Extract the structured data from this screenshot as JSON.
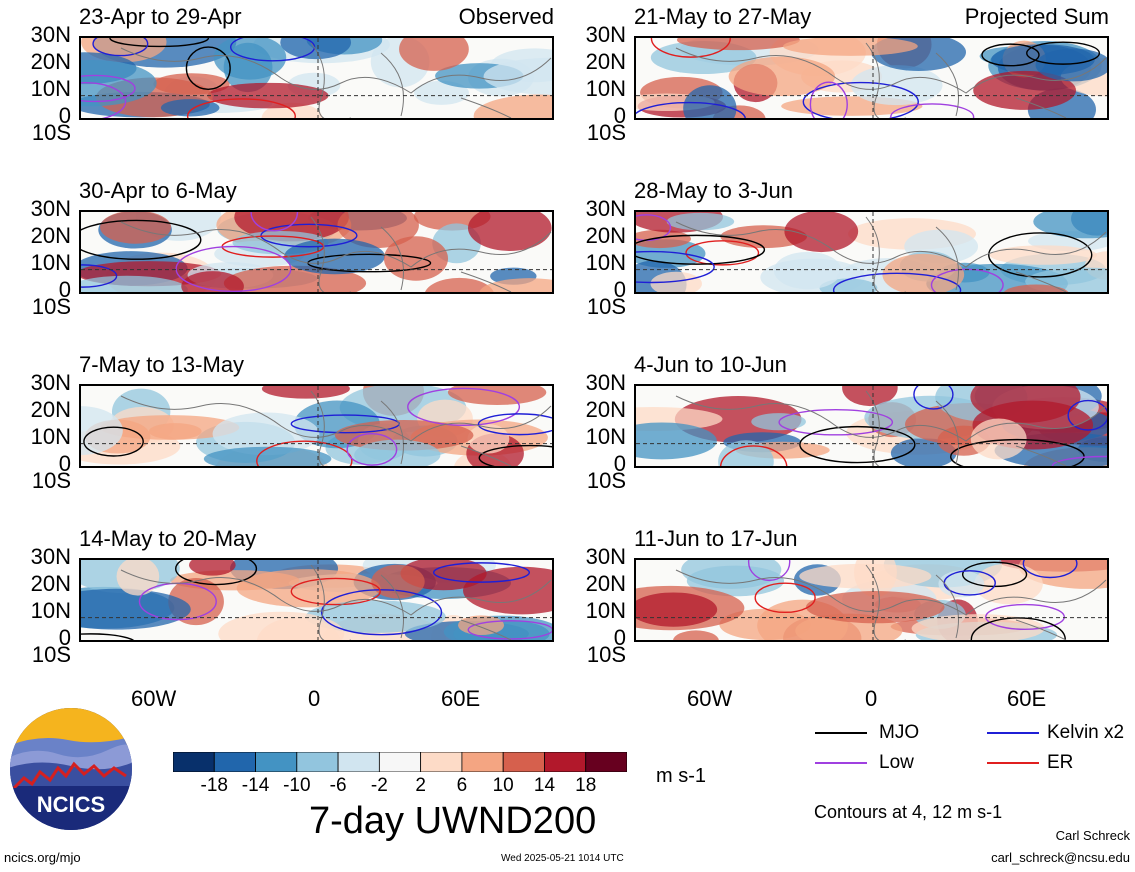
{
  "panels_left": [
    {
      "title": "23-Apr to 29-Apr",
      "tag": "Observed"
    },
    {
      "title": "30-Apr to 6-May",
      "tag": ""
    },
    {
      "title": "7-May to 13-May",
      "tag": ""
    },
    {
      "title": "14-May to 20-May",
      "tag": ""
    }
  ],
  "panels_right": [
    {
      "title": "21-May to 27-May",
      "tag": "Projected Sum"
    },
    {
      "title": "28-May to 3-Jun",
      "tag": ""
    },
    {
      "title": "4-Jun to 10-Jun",
      "tag": ""
    },
    {
      "title": "11-Jun to 17-Jun",
      "tag": ""
    }
  ],
  "lat_labels": [
    "30N",
    "20N",
    "10N",
    "0",
    "10S"
  ],
  "lon_labels": [
    "60W",
    "0",
    "60E"
  ],
  "colorbar": {
    "ticks": [
      "-18",
      "-14",
      "-10",
      "-6",
      "-2",
      "2",
      "6",
      "10",
      "14",
      "18"
    ],
    "colors": [
      "#08306b",
      "#2166ac",
      "#4393c3",
      "#92c5de",
      "#d1e5f0",
      "#f7f7f7",
      "#fddbc7",
      "#f4a582",
      "#d6604d",
      "#b2182b",
      "#67001f"
    ],
    "units": "m s-1",
    "title": "7-day UWND200"
  },
  "legend": [
    {
      "label": "MJO",
      "color": "#000000"
    },
    {
      "label": "Kelvin x2",
      "color": "#1f1fd6"
    },
    {
      "label": "Low",
      "color": "#a040e0"
    },
    {
      "label": "ER",
      "color": "#e01f1f"
    }
  ],
  "contours_note": "Contours at 4, 12 m s-1",
  "logo": {
    "text": "NCICS"
  },
  "footer": {
    "url": "ncics.org/mjo",
    "timestamp": "Wed 2025-05-21 1014 UTC",
    "author": "Carl Schreck",
    "email": "carl_schreck@ncsu.edu"
  }
}
